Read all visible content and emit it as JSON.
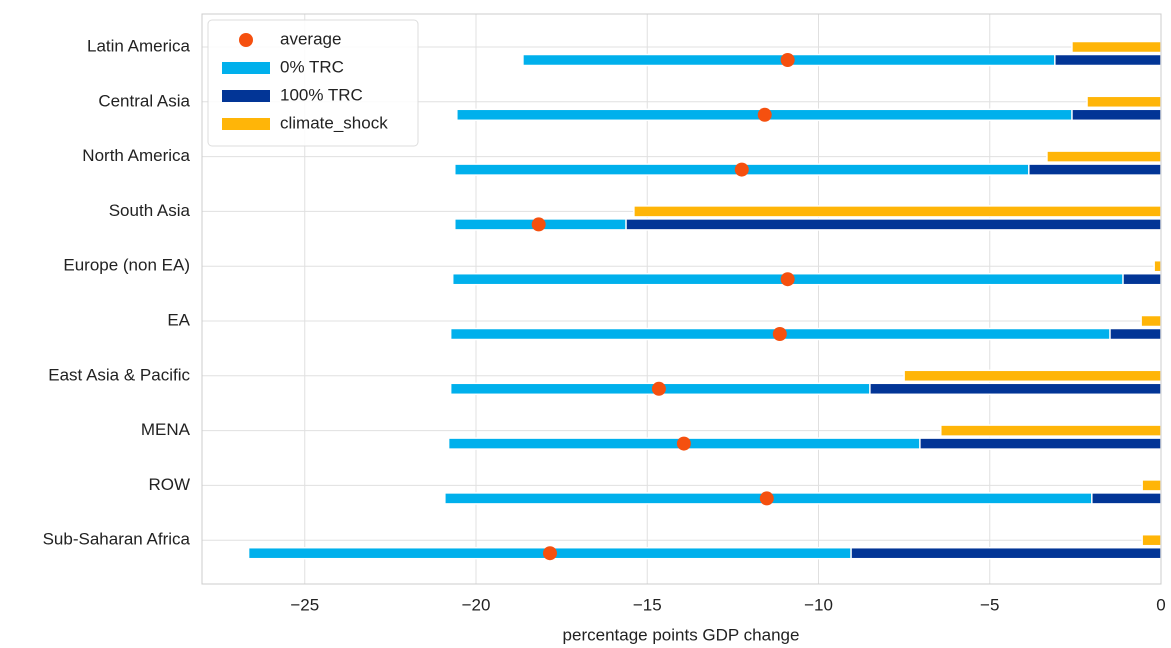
{
  "chart_data": {
    "type": "bar",
    "orientation": "horizontal",
    "x_label": "percentage points GDP change",
    "categories": [
      "Latin America",
      "Central Asia",
      "North America",
      "South Asia",
      "Europe (non EA)",
      "EA",
      "East Asia & Pacific",
      "MENA",
      "ROW",
      "Sub-Saharan Africa"
    ],
    "series": [
      {
        "name": "average",
        "color": "#f5500f",
        "marker": "circle",
        "values": [
          -10.9,
          -11.57,
          -12.24,
          -18.17,
          -10.9,
          -11.13,
          -14.66,
          -13.93,
          -11.51,
          -17.84
        ]
      },
      {
        "name": "0% TRC",
        "color": "#00b0ec",
        "values": [
          -18.63,
          -20.56,
          -20.62,
          -20.62,
          -20.68,
          -20.74,
          -20.74,
          -20.8,
          -20.91,
          -26.64
        ]
      },
      {
        "name": "100% TRC",
        "color": "#023596",
        "values": [
          -3.1,
          -2.6,
          -3.86,
          -15.62,
          -1.11,
          -1.49,
          -8.5,
          -7.04,
          -2.02,
          -9.05
        ]
      },
      {
        "name": "climate_shock",
        "color": "#ffb508",
        "values": [
          -2.6,
          -2.16,
          -3.33,
          -15.39,
          -0.2,
          -0.58,
          -7.5,
          -6.43,
          -0.55,
          -0.55
        ]
      }
    ],
    "xlim": [
      -28,
      0
    ],
    "xticks": [
      {
        "value": -25,
        "label": "−25"
      },
      {
        "value": -20,
        "label": "−20"
      },
      {
        "value": -15,
        "label": "−15"
      },
      {
        "value": -10,
        "label": "−10"
      },
      {
        "value": -5,
        "label": "−5"
      },
      0
    ],
    "grid": true,
    "legend": "upper left"
  }
}
